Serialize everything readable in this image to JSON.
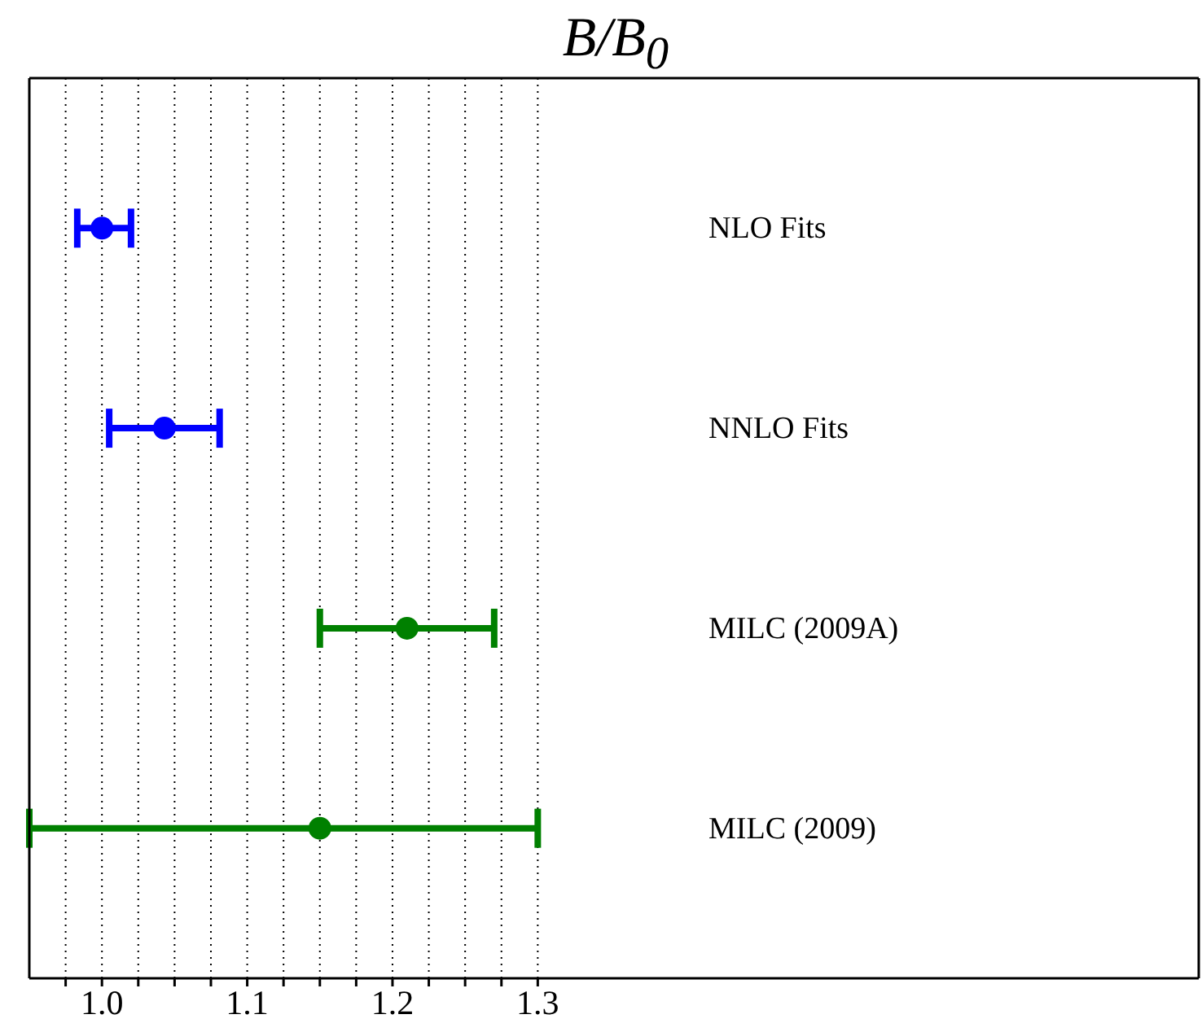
{
  "chart_data": {
    "type": "scatter",
    "title": "B/B$_{0}$",
    "orientation": "horizontal",
    "categories": [
      "NLO Fits",
      "NNLO Fits",
      "MILC (2009A)",
      "MILC (2009)"
    ],
    "series": [
      {
        "color": "#0000ff",
        "values": [
          1.0,
          1.043,
          null,
          null
        ],
        "errors": [
          [
            0.983,
            1.02
          ],
          [
            1.005,
            1.081
          ],
          null,
          null
        ]
      },
      {
        "color": "#008000",
        "values": [
          null,
          null,
          1.21,
          1.15
        ],
        "errors": [
          null,
          null,
          [
            1.15,
            1.27
          ],
          [
            0.95,
            1.3
          ]
        ]
      }
    ],
    "xlim": [
      0.95,
      1.755
    ],
    "xticks": [
      {
        "value": 0.975,
        "label": null
      },
      {
        "value": 1.0,
        "label": "1.0"
      },
      {
        "value": 1.025,
        "label": null
      },
      {
        "value": 1.05,
        "label": null
      },
      {
        "value": 1.075,
        "label": null
      },
      1.1,
      {
        "value": 1.125,
        "label": null
      },
      {
        "value": 1.15,
        "label": null
      },
      {
        "value": 1.175,
        "label": null
      },
      1.2,
      {
        "value": 1.225,
        "label": null
      },
      {
        "value": 1.25,
        "label": null
      },
      {
        "value": 1.275,
        "label": null
      },
      1.3
    ],
    "grid": "x",
    "marker": "circle"
  }
}
